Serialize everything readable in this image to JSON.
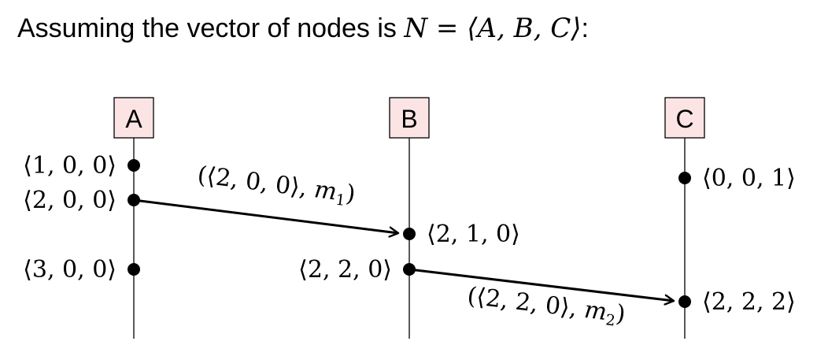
{
  "heading": {
    "prefix": "Assuming the vector of nodes is ",
    "math": "N = ⟨A, B, C⟩",
    "suffix": ":"
  },
  "nodes": [
    {
      "id": "A",
      "label": "A"
    },
    {
      "id": "B",
      "label": "B"
    },
    {
      "id": "C",
      "label": "C"
    }
  ],
  "events": [
    {
      "node": "A",
      "label": "⟨1, 0, 0⟩"
    },
    {
      "node": "A",
      "label": "⟨2, 0, 0⟩"
    },
    {
      "node": "A",
      "label": "⟨3, 0, 0⟩"
    },
    {
      "node": "B",
      "label": "⟨2, 1, 0⟩"
    },
    {
      "node": "B",
      "label": "⟨2, 2, 0⟩"
    },
    {
      "node": "C",
      "label": "⟨0, 0, 1⟩"
    },
    {
      "node": "C",
      "label": "⟨2, 2, 2⟩"
    }
  ],
  "messages": [
    {
      "from": "A",
      "to": "B",
      "clock": "(⟨2, 0, 0⟩, ",
      "name": "m",
      "sub": "1",
      "close": ")"
    },
    {
      "from": "B",
      "to": "C",
      "clock": "(⟨2, 2, 0⟩, ",
      "name": "m",
      "sub": "2",
      "close": ")"
    }
  ],
  "colors": {
    "node_box_fill": "#fde4e4",
    "stroke": "#000000"
  }
}
